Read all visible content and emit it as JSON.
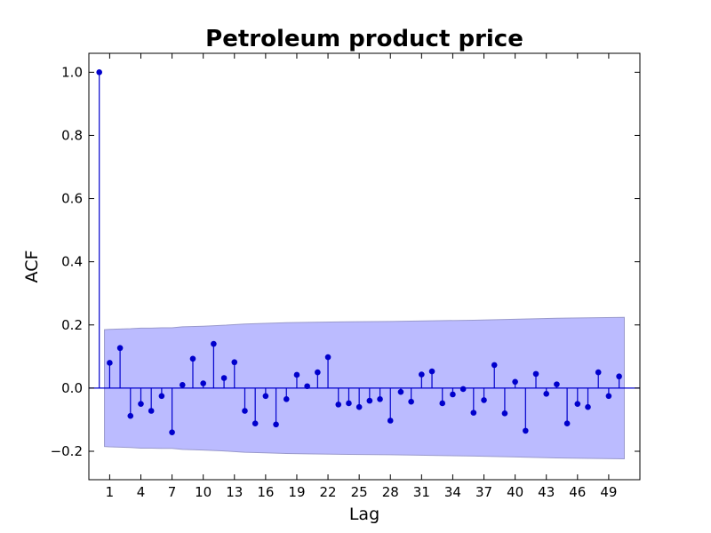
{
  "chart_data": {
    "type": "stem",
    "title": "Petroleum product price",
    "xlabel": "Lag",
    "ylabel": "ACF",
    "xlim": [
      -1,
      52
    ],
    "ylim": [
      -0.29,
      1.06
    ],
    "xticks": [
      1,
      4,
      7,
      10,
      13,
      16,
      19,
      22,
      25,
      28,
      31,
      34,
      37,
      40,
      43,
      46,
      49
    ],
    "yticks": [
      -0.2,
      0.0,
      0.2,
      0.4,
      0.6,
      0.8,
      1.0
    ],
    "ytick_labels": [
      "−0.2",
      "0.0",
      "0.2",
      "0.4",
      "0.6",
      "0.8",
      "1.0"
    ],
    "lags": [
      0,
      1,
      2,
      3,
      4,
      5,
      6,
      7,
      8,
      9,
      10,
      11,
      12,
      13,
      14,
      15,
      16,
      17,
      18,
      19,
      20,
      21,
      22,
      23,
      24,
      25,
      26,
      27,
      28,
      29,
      30,
      31,
      32,
      33,
      34,
      35,
      36,
      37,
      38,
      39,
      40,
      41,
      42,
      43,
      44,
      45,
      46,
      47,
      48,
      49,
      50
    ],
    "acf": [
      1.0,
      0.08,
      0.127,
      -0.088,
      -0.05,
      -0.072,
      -0.025,
      -0.14,
      0.01,
      0.093,
      0.015,
      0.14,
      0.032,
      0.082,
      -0.072,
      -0.112,
      -0.025,
      -0.115,
      -0.035,
      0.042,
      0.006,
      0.05,
      0.098,
      -0.052,
      -0.048,
      -0.06,
      -0.04,
      -0.035,
      -0.103,
      -0.012,
      -0.043,
      0.043,
      0.053,
      -0.048,
      -0.02,
      -0.003,
      -0.078,
      -0.038,
      0.073,
      -0.08,
      0.02,
      -0.135,
      0.045,
      -0.018,
      0.012,
      -0.112,
      -0.05,
      -0.06,
      0.05,
      -0.025,
      0.037
    ],
    "confint_x": [
      0.5,
      1,
      2,
      3,
      4,
      5,
      6,
      7,
      8,
      10,
      12,
      14,
      16,
      18,
      20,
      24,
      28,
      32,
      36,
      40,
      44,
      48,
      50.5
    ],
    "confint_upper": [
      0.185,
      0.186,
      0.187,
      0.188,
      0.19,
      0.19,
      0.191,
      0.191,
      0.194,
      0.196,
      0.199,
      0.203,
      0.205,
      0.207,
      0.208,
      0.21,
      0.211,
      0.213,
      0.215,
      0.218,
      0.221,
      0.223,
      0.224
    ],
    "colors": {
      "stem": "#0000cc",
      "marker": "#0000cc",
      "band_fill": "#bbbbff",
      "band_edge": "#9999cc",
      "zero_line": "#0000cc"
    },
    "grid": false,
    "legend": "none"
  }
}
